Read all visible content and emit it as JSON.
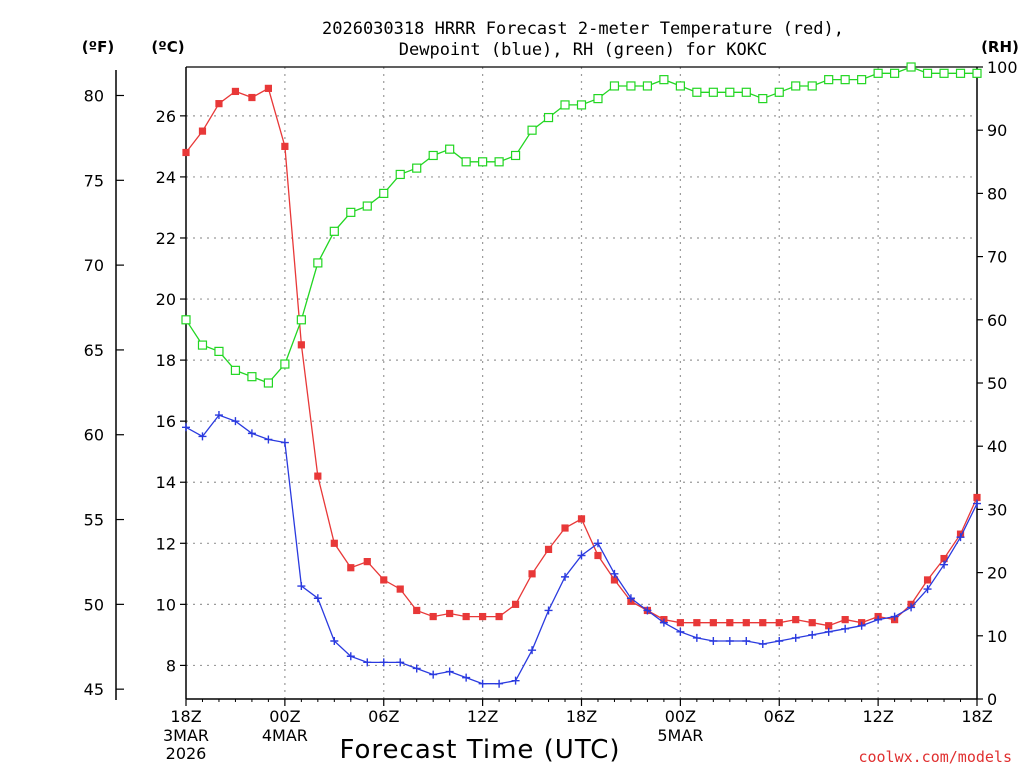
{
  "title_line1": "2026030318 HRRR Forecast 2-meter Temperature (red),",
  "title_line2": "Dewpoint (blue), RH (green) for KOKC",
  "units": {
    "f": "(ºF)",
    "c": "(ºC)",
    "rh": "(RH)"
  },
  "xlabel": "Forecast Time (UTC)",
  "credit": "coolwx.com/models",
  "date_labels": [
    {
      "h": 0,
      "lines": [
        "3MAR",
        "2026"
      ]
    },
    {
      "h": 6,
      "lines": [
        "4MAR"
      ]
    },
    {
      "h": 30,
      "lines": [
        "5MAR"
      ]
    }
  ],
  "colors": {
    "temp": "#e83838",
    "dew": "#2a3adf",
    "rh": "#22d622"
  },
  "chart_data": {
    "type": "line",
    "title": "2026030318 HRRR Forecast 2-meter Temperature (red), Dewpoint (blue), RH (green) for KOKC",
    "xlabel": "Forecast Time (UTC)",
    "x_unit": "forecast hour from 18Z 3 MAR 2026",
    "xlim": [
      0,
      48
    ],
    "x_ticks": [
      {
        "h": 0,
        "label": "18Z"
      },
      {
        "h": 6,
        "label": "00Z"
      },
      {
        "h": 12,
        "label": "06Z"
      },
      {
        "h": 18,
        "label": "12Z"
      },
      {
        "h": 24,
        "label": "18Z"
      },
      {
        "h": 30,
        "label": "00Z"
      },
      {
        "h": 36,
        "label": "06Z"
      },
      {
        "h": 42,
        "label": "12Z"
      },
      {
        "h": 48,
        "label": "18Z"
      }
    ],
    "ylim_c": [
      6.9,
      27.6
    ],
    "ylabel_c": "ºC",
    "y_ticks_c": [
      8,
      10,
      12,
      14,
      16,
      18,
      20,
      22,
      24,
      26
    ],
    "ylabel_f": "ºF",
    "y_ticks_f": [
      45,
      50,
      55,
      60,
      65,
      70,
      75,
      80
    ],
    "ylim_rh": [
      0,
      100
    ],
    "ylabel_rh": "RH",
    "y_ticks_rh": [
      0,
      10,
      20,
      30,
      40,
      50,
      60,
      70,
      80,
      90,
      100
    ],
    "x": [
      0,
      1,
      2,
      3,
      4,
      5,
      6,
      7,
      8,
      9,
      10,
      11,
      12,
      13,
      14,
      15,
      16,
      17,
      18,
      19,
      20,
      21,
      22,
      23,
      24,
      25,
      26,
      27,
      28,
      29,
      30,
      31,
      32,
      33,
      34,
      35,
      36,
      37,
      38,
      39,
      40,
      41,
      42,
      43,
      44,
      45,
      46,
      47,
      48
    ],
    "series": [
      {
        "name": "Temperature",
        "unit": "ºC",
        "marker": "filled-square",
        "values": [
          24.8,
          25.5,
          26.4,
          26.8,
          26.6,
          26.9,
          25.0,
          18.5,
          14.2,
          12.0,
          11.2,
          11.4,
          10.8,
          10.5,
          9.8,
          9.6,
          9.7,
          9.6,
          9.6,
          9.6,
          10.0,
          11.0,
          11.8,
          12.5,
          12.8,
          11.6,
          10.8,
          10.1,
          9.8,
          9.5,
          9.4,
          9.4,
          9.4,
          9.4,
          9.4,
          9.4,
          9.4,
          9.5,
          9.4,
          9.3,
          9.5,
          9.4,
          9.6,
          9.5,
          10.0,
          10.8,
          11.5,
          12.3,
          13.5
        ]
      },
      {
        "name": "Dewpoint",
        "unit": "ºC",
        "marker": "plus",
        "values": [
          15.8,
          15.5,
          16.2,
          16.0,
          15.6,
          15.4,
          15.3,
          10.6,
          10.2,
          8.8,
          8.3,
          8.1,
          8.1,
          8.1,
          7.9,
          7.7,
          7.8,
          7.6,
          7.4,
          7.4,
          7.5,
          8.5,
          9.8,
          10.9,
          11.6,
          12.0,
          11.0,
          10.2,
          9.8,
          9.4,
          9.1,
          8.9,
          8.8,
          8.8,
          8.8,
          8.7,
          8.8,
          8.9,
          9.0,
          9.1,
          9.2,
          9.3,
          9.5,
          9.6,
          9.9,
          10.5,
          11.3,
          12.2,
          13.3
        ]
      },
      {
        "name": "Relative Humidity",
        "unit": "%",
        "marker": "open-square",
        "values": [
          60,
          56,
          55,
          52,
          51,
          50,
          53,
          60,
          69,
          74,
          77,
          78,
          80,
          83,
          84,
          86,
          87,
          85,
          85,
          85,
          86,
          90,
          92,
          94,
          94,
          95,
          97,
          97,
          97,
          98,
          97,
          96,
          96,
          96,
          96,
          95,
          96,
          97,
          97,
          98,
          98,
          98,
          99,
          99,
          100,
          99,
          99,
          99,
          99
        ]
      }
    ]
  }
}
